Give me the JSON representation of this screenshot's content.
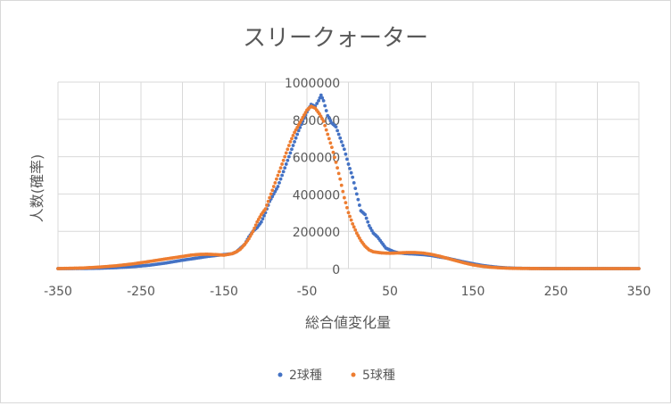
{
  "chart_data": {
    "type": "scatter",
    "title": "スリークォーター",
    "xlabel": "総合値変化量",
    "ylabel": "人数(確率)",
    "xlim": [
      -350,
      350
    ],
    "ylim": [
      0,
      1000000
    ],
    "xticks": [
      "-350",
      "-250",
      "-150",
      "-50",
      "50",
      "150",
      "250",
      "350"
    ],
    "xtick_values": [
      -350,
      -250,
      -150,
      -50,
      50,
      150,
      250,
      350
    ],
    "yticks": [
      "0",
      "200000",
      "400000",
      "600000",
      "800000",
      "1000000"
    ],
    "ytick_values": [
      0,
      200000,
      400000,
      600000,
      800000,
      1000000
    ],
    "grid": true,
    "legend_position": "bottom",
    "series": [
      {
        "name": "2球種",
        "color": "#4472c4",
        "points": [
          [
            -350,
            0
          ],
          [
            -320,
            500
          ],
          [
            -300,
            2000
          ],
          [
            -280,
            5000
          ],
          [
            -260,
            10000
          ],
          [
            -240,
            18000
          ],
          [
            -220,
            30000
          ],
          [
            -200,
            45000
          ],
          [
            -180,
            58000
          ],
          [
            -170,
            65000
          ],
          [
            -160,
            70000
          ],
          [
            -150,
            75000
          ],
          [
            -140,
            80000
          ],
          [
            -135,
            90000
          ],
          [
            -130,
            110000
          ],
          [
            -125,
            130000
          ],
          [
            -120,
            170000
          ],
          [
            -115,
            200000
          ],
          [
            -110,
            220000
          ],
          [
            -105,
            250000
          ],
          [
            -100,
            300000
          ],
          [
            -95,
            360000
          ],
          [
            -90,
            400000
          ],
          [
            -85,
            440000
          ],
          [
            -80,
            500000
          ],
          [
            -75,
            560000
          ],
          [
            -70,
            620000
          ],
          [
            -65,
            680000
          ],
          [
            -60,
            740000
          ],
          [
            -55,
            790000
          ],
          [
            -50,
            840000
          ],
          [
            -45,
            880000
          ],
          [
            -40,
            870000
          ],
          [
            -36,
            900000
          ],
          [
            -33,
            930000
          ],
          [
            -30,
            900000
          ],
          [
            -25,
            820000
          ],
          [
            -20,
            780000
          ],
          [
            -15,
            760000
          ],
          [
            -10,
            700000
          ],
          [
            -5,
            640000
          ],
          [
            0,
            560000
          ],
          [
            5,
            490000
          ],
          [
            10,
            400000
          ],
          [
            15,
            310000
          ],
          [
            20,
            290000
          ],
          [
            25,
            230000
          ],
          [
            30,
            190000
          ],
          [
            35,
            170000
          ],
          [
            40,
            140000
          ],
          [
            45,
            110000
          ],
          [
            50,
            100000
          ],
          [
            55,
            90000
          ],
          [
            60,
            85000
          ],
          [
            70,
            80000
          ],
          [
            80,
            78000
          ],
          [
            90,
            75000
          ],
          [
            100,
            70000
          ],
          [
            110,
            62000
          ],
          [
            120,
            55000
          ],
          [
            130,
            45000
          ],
          [
            140,
            35000
          ],
          [
            150,
            26000
          ],
          [
            160,
            18000
          ],
          [
            170,
            12000
          ],
          [
            180,
            7000
          ],
          [
            190,
            4000
          ],
          [
            200,
            2000
          ],
          [
            220,
            700
          ],
          [
            240,
            200
          ],
          [
            260,
            0
          ],
          [
            300,
            0
          ],
          [
            350,
            0
          ]
        ]
      },
      {
        "name": "5球種",
        "color": "#ed7d31",
        "points": [
          [
            -350,
            0
          ],
          [
            -320,
            3000
          ],
          [
            -300,
            8000
          ],
          [
            -280,
            15000
          ],
          [
            -260,
            25000
          ],
          [
            -240,
            38000
          ],
          [
            -220,
            52000
          ],
          [
            -200,
            65000
          ],
          [
            -190,
            72000
          ],
          [
            -180,
            76000
          ],
          [
            -170,
            77000
          ],
          [
            -160,
            75000
          ],
          [
            -150,
            72000
          ],
          [
            -140,
            80000
          ],
          [
            -135,
            90000
          ],
          [
            -130,
            105000
          ],
          [
            -125,
            130000
          ],
          [
            -120,
            160000
          ],
          [
            -115,
            200000
          ],
          [
            -110,
            250000
          ],
          [
            -105,
            290000
          ],
          [
            -100,
            320000
          ],
          [
            -95,
            380000
          ],
          [
            -90,
            440000
          ],
          [
            -85,
            500000
          ],
          [
            -80,
            560000
          ],
          [
            -75,
            620000
          ],
          [
            -70,
            680000
          ],
          [
            -65,
            730000
          ],
          [
            -60,
            770000
          ],
          [
            -55,
            810000
          ],
          [
            -50,
            850000
          ],
          [
            -45,
            870000
          ],
          [
            -40,
            860000
          ],
          [
            -35,
            830000
          ],
          [
            -30,
            790000
          ],
          [
            -25,
            720000
          ],
          [
            -20,
            650000
          ],
          [
            -15,
            570000
          ],
          [
            -10,
            480000
          ],
          [
            -5,
            380000
          ],
          [
            0,
            300000
          ],
          [
            5,
            240000
          ],
          [
            10,
            190000
          ],
          [
            15,
            150000
          ],
          [
            20,
            120000
          ],
          [
            25,
            100000
          ],
          [
            30,
            90000
          ],
          [
            40,
            84000
          ],
          [
            50,
            82000
          ],
          [
            60,
            84000
          ],
          [
            70,
            86000
          ],
          [
            80,
            86000
          ],
          [
            90,
            83000
          ],
          [
            100,
            76000
          ],
          [
            110,
            66000
          ],
          [
            120,
            54000
          ],
          [
            130,
            42000
          ],
          [
            140,
            30000
          ],
          [
            150,
            20000
          ],
          [
            160,
            13000
          ],
          [
            170,
            8000
          ],
          [
            180,
            4500
          ],
          [
            190,
            2500
          ],
          [
            200,
            1200
          ],
          [
            220,
            300
          ],
          [
            240,
            0
          ],
          [
            300,
            0
          ],
          [
            350,
            0
          ]
        ]
      }
    ]
  }
}
